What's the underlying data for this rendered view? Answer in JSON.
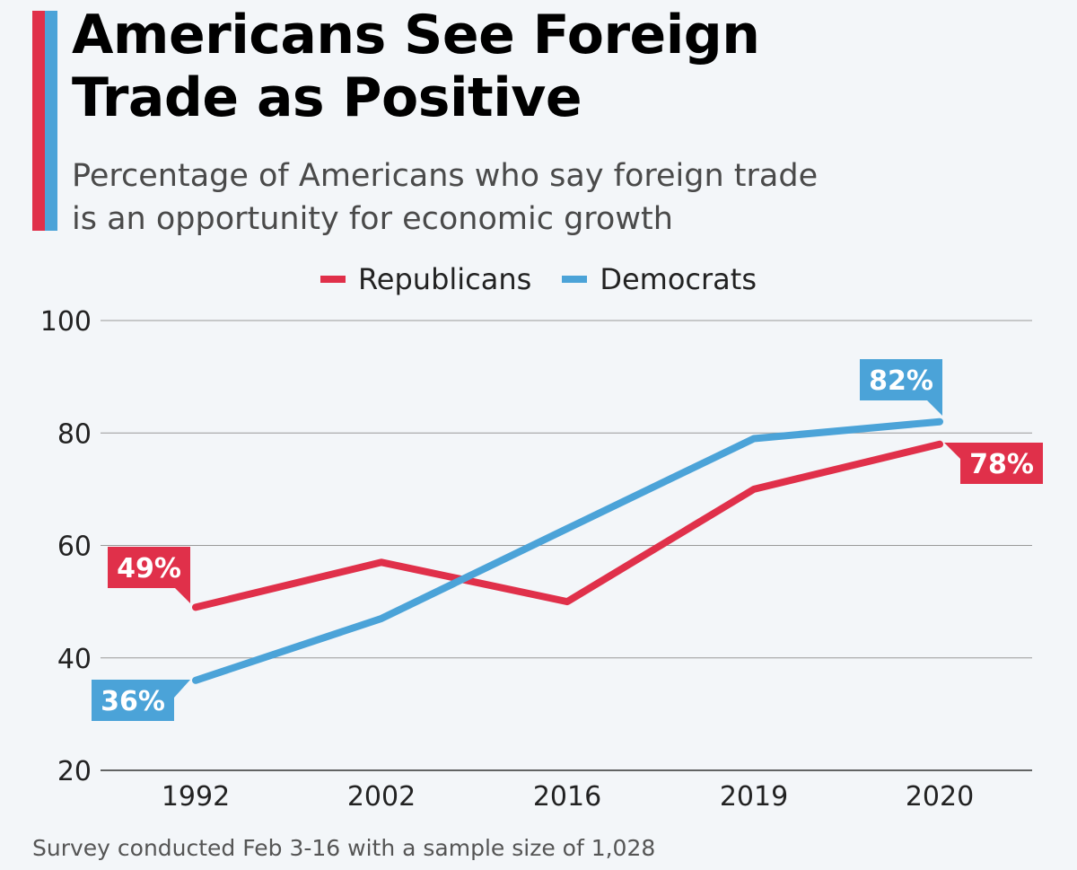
{
  "header": {
    "title_line1": "Americans See Foreign",
    "title_line2": "Trade as Positive",
    "subtitle_line1": "Percentage of Americans who say foreign trade",
    "subtitle_line2": "is an opportunity for economic growth"
  },
  "footer": {
    "note": "Survey conducted Feb 3-16 with a sample size of 1,028"
  },
  "colors": {
    "republicans": "#e0304a",
    "democrats": "#4ba3d8"
  },
  "chart_data": {
    "type": "line",
    "title": "Americans See Foreign Trade as Positive",
    "subtitle": "Percentage of Americans who say foreign trade is an opportunity for economic growth",
    "xlabel": "",
    "ylabel": "",
    "categories": [
      "1992",
      "2002",
      "2016",
      "2019",
      "2020"
    ],
    "ylim": [
      20,
      100
    ],
    "yticks": [
      20,
      40,
      60,
      80,
      100
    ],
    "grid": true,
    "legend": "top-center",
    "series": [
      {
        "name": "Republicans",
        "color": "#e0304a",
        "values": [
          49,
          57,
          50,
          70,
          78
        ]
      },
      {
        "name": "Democrats",
        "color": "#4ba3d8",
        "values": [
          36,
          47,
          63,
          79,
          82
        ]
      }
    ],
    "annotations": [
      {
        "series": "Republicans",
        "category": "1992",
        "text": "49%"
      },
      {
        "series": "Democrats",
        "category": "1992",
        "text": "36%"
      },
      {
        "series": "Democrats",
        "category": "2020",
        "text": "82%"
      },
      {
        "series": "Republicans",
        "category": "2020",
        "text": "78%"
      }
    ]
  }
}
